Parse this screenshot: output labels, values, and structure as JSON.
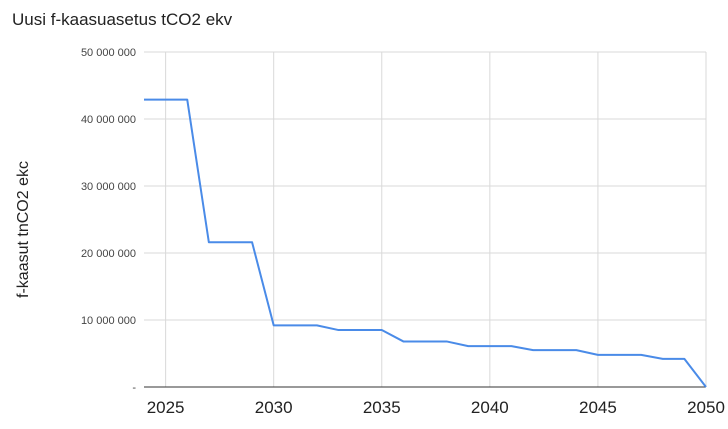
{
  "chart_data": {
    "type": "line",
    "title": "Uusi f-kaasuasetus tCO2 ekv",
    "xlabel": "",
    "ylabel": "f-kaasut tnCO2 ekc",
    "xlim": [
      2024,
      2050
    ],
    "ylim": [
      0,
      50000000
    ],
    "x_ticks": [
      "2025",
      "2030",
      "2035",
      "2040",
      "2045",
      "2050"
    ],
    "x_tick_values": [
      2025,
      2030,
      2035,
      2040,
      2045,
      2050
    ],
    "y_ticks": [
      "-",
      "10 000 000",
      "20 000 000",
      "30 000 000",
      "40 000 000",
      "50 000 000"
    ],
    "y_tick_values": [
      0,
      10000000,
      20000000,
      30000000,
      40000000,
      50000000
    ],
    "grid": true,
    "legend": "none",
    "series": [
      {
        "color": "#4a8be8",
        "points": [
          [
            2024,
            42900000
          ],
          [
            2026,
            42900000
          ],
          [
            2027,
            21600000
          ],
          [
            2029,
            21600000
          ],
          [
            2030,
            9200000
          ],
          [
            2032,
            9200000
          ],
          [
            2033,
            8500000
          ],
          [
            2035,
            8500000
          ],
          [
            2036,
            6800000
          ],
          [
            2038,
            6800000
          ],
          [
            2039,
            6100000
          ],
          [
            2041,
            6100000
          ],
          [
            2042,
            5500000
          ],
          [
            2044,
            5500000
          ],
          [
            2045,
            4800000
          ],
          [
            2047,
            4800000
          ],
          [
            2048,
            4200000
          ],
          [
            2049,
            4200000
          ],
          [
            2050,
            0
          ]
        ]
      }
    ]
  }
}
